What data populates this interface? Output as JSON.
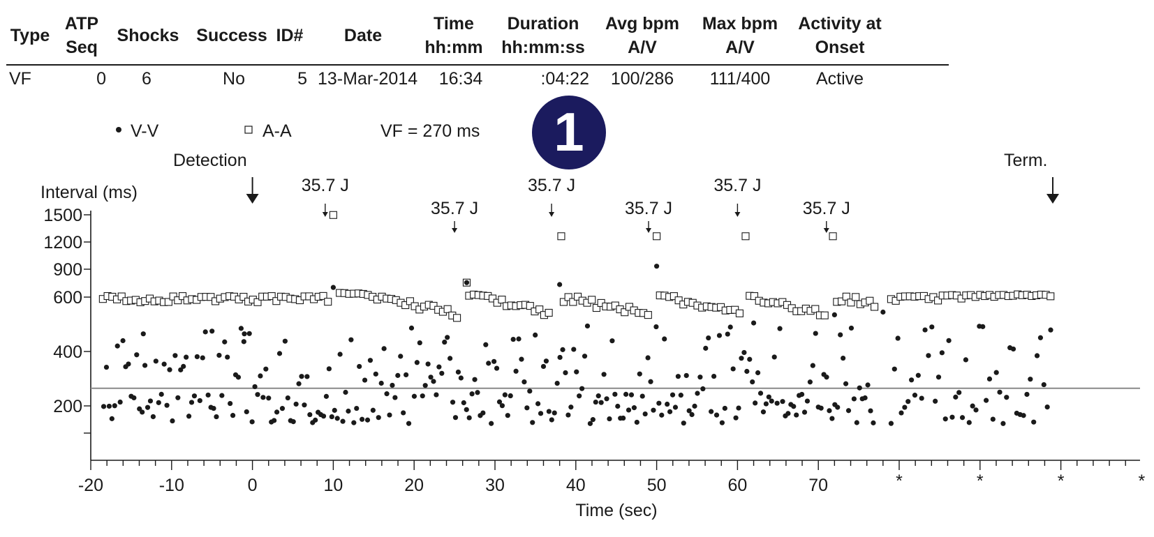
{
  "table": {
    "headers": [
      {
        "line1": "Type",
        "line2": ""
      },
      {
        "line1": "ATP",
        "line2": "Seq"
      },
      {
        "line1": "Shocks",
        "line2": ""
      },
      {
        "line1": "Success",
        "line2": ""
      },
      {
        "line1": "ID#",
        "line2": ""
      },
      {
        "line1": "Date",
        "line2": ""
      },
      {
        "line1": "Time",
        "line2": "hh:mm"
      },
      {
        "line1": "Duration",
        "line2": "hh:mm:ss"
      },
      {
        "line1": "Avg bpm",
        "line2": "A/V"
      },
      {
        "line1": "Max bpm",
        "line2": "A/V"
      },
      {
        "line1": "Activity at",
        "line2": "Onset"
      }
    ],
    "row": [
      "VF",
      "0",
      "6",
      "No",
      "5",
      "13-Mar-2014",
      "16:34",
      ":04:22",
      "100/286",
      "111/400",
      "Active"
    ]
  },
  "badge": "1",
  "legend": {
    "vv": "V-V",
    "aa": "A-A",
    "vf_label": "VF = 270 ms"
  },
  "markers": {
    "detection": "Detection",
    "termination": "Term."
  },
  "chart_data": {
    "type": "scatter",
    "title": "",
    "xlabel": "Time (sec)",
    "ylabel": "Interval (ms)",
    "x_ticks": [
      "-20",
      "-10",
      "0",
      "10",
      "20",
      "30",
      "40",
      "50",
      "60",
      "70",
      "*",
      "*",
      "*",
      "*"
    ],
    "y_ticks": [
      "1500",
      "1200",
      "900",
      "600",
      "400",
      "200"
    ],
    "vf_threshold_ms": 270,
    "detection_time_sec": 0,
    "termination_time_sec": 99,
    "shocks": [
      {
        "label": "35.7 J",
        "time_sec": 9
      },
      {
        "label": "35.7 J",
        "time_sec": 25
      },
      {
        "label": "35.7 J",
        "time_sec": 37
      },
      {
        "label": "35.7 J",
        "time_sec": 49
      },
      {
        "label": "35.7 J",
        "time_sec": 60
      },
      {
        "label": "35.7 J",
        "time_sec": 71
      }
    ],
    "series": [
      {
        "name": "V-V",
        "marker": "filled-circle"
      },
      {
        "name": "A-A",
        "marker": "open-square"
      }
    ],
    "aa_points": [
      [
        10,
        1450
      ],
      [
        26.5,
        750
      ],
      [
        38.2,
        1230
      ],
      [
        50,
        1230
      ],
      [
        61,
        1230
      ],
      [
        71.8,
        1230
      ]
    ],
    "vv_points": [
      [
        10,
        700
      ],
      [
        26.5,
        750
      ],
      [
        38,
        730
      ],
      [
        50,
        920
      ],
      [
        -1,
        470
      ],
      [
        -13.5,
        470
      ],
      [
        -5,
        480
      ],
      [
        62,
        510
      ],
      [
        72,
        540
      ],
      [
        78,
        550
      ]
    ]
  }
}
